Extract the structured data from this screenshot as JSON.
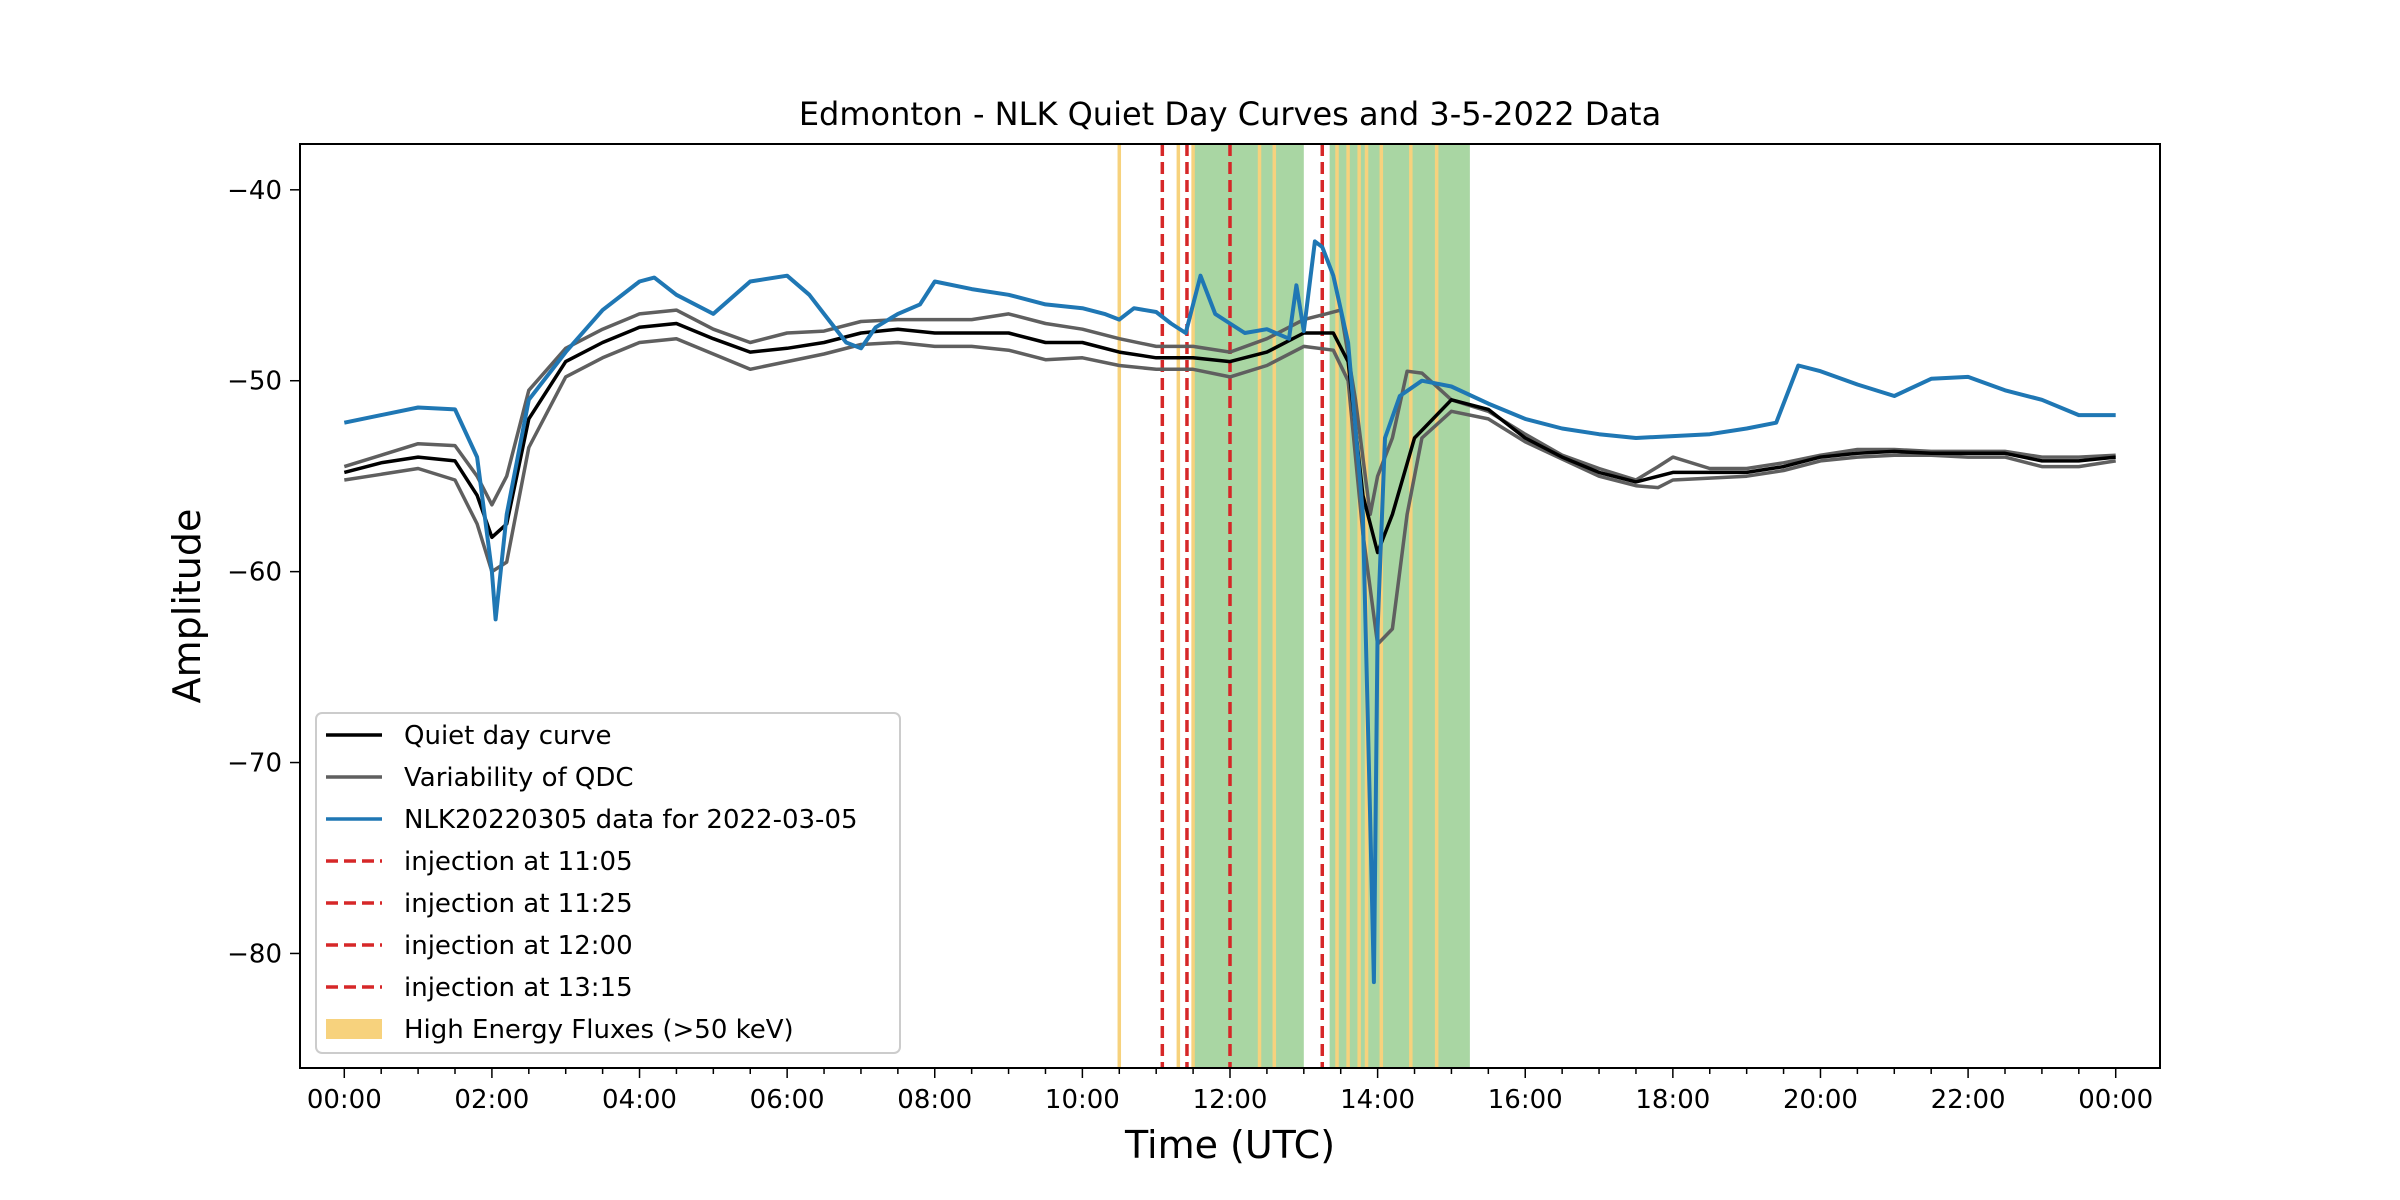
{
  "chart_data": {
    "type": "line",
    "title": "Edmonton - NLK Quiet Day Curves and 3-5-2022 Data",
    "xlabel": "Time (UTC)",
    "ylabel": "Amplitude",
    "xlim_hours": [
      -0.6,
      24.6
    ],
    "ylim": [
      -86,
      -37.6
    ],
    "x_ticks": [
      {
        "hour": 0,
        "label": "00:00"
      },
      {
        "hour": 2,
        "label": "02:00"
      },
      {
        "hour": 4,
        "label": "04:00"
      },
      {
        "hour": 6,
        "label": "06:00"
      },
      {
        "hour": 8,
        "label": "08:00"
      },
      {
        "hour": 10,
        "label": "10:00"
      },
      {
        "hour": 12,
        "label": "12:00"
      },
      {
        "hour": 14,
        "label": "14:00"
      },
      {
        "hour": 16,
        "label": "16:00"
      },
      {
        "hour": 18,
        "label": "18:00"
      },
      {
        "hour": 20,
        "label": "20:00"
      },
      {
        "hour": 22,
        "label": "22:00"
      },
      {
        "hour": 24,
        "label": "00:00"
      }
    ],
    "y_ticks": [
      {
        "value": -40,
        "label": "−40"
      },
      {
        "value": -50,
        "label": "−50"
      },
      {
        "value": -60,
        "label": "−60"
      },
      {
        "value": -70,
        "label": "−70"
      },
      {
        "value": -80,
        "label": "−80"
      }
    ],
    "series": [
      {
        "name": "NLK20220305 data for 2022-03-05",
        "color": "#1f77b4",
        "x": [
          0,
          0.5,
          1,
          1.5,
          1.8,
          2,
          2.05,
          2.2,
          2.5,
          3,
          3.5,
          4,
          4.2,
          4.5,
          5,
          5.5,
          6,
          6.3,
          6.5,
          6.8,
          7,
          7.2,
          7.5,
          7.8,
          8,
          8.5,
          9,
          9.5,
          10,
          10.3,
          10.5,
          10.7,
          11,
          11.2,
          11.4,
          11.6,
          11.8,
          12,
          12.2,
          12.5,
          12.8,
          12.9,
          13,
          13.15,
          13.25,
          13.4,
          13.6,
          13.8,
          13.9,
          13.95,
          14,
          14.1,
          14.3,
          14.6,
          15,
          15.5,
          16,
          16.5,
          17,
          17.5,
          18,
          18.5,
          19,
          19.4,
          19.7,
          20,
          20.5,
          21,
          21.5,
          22,
          22.5,
          23,
          23.5,
          24
        ],
        "y": [
          -52.2,
          -51.8,
          -51.4,
          -51.5,
          -54,
          -60,
          -62.5,
          -57,
          -51,
          -48.5,
          -46.3,
          -44.8,
          -44.6,
          -45.5,
          -46.5,
          -44.8,
          -44.5,
          -45.5,
          -46.5,
          -48,
          -48.3,
          -47.2,
          -46.5,
          -46,
          -44.8,
          -45.2,
          -45.5,
          -46,
          -46.2,
          -46.5,
          -46.8,
          -46.2,
          -46.4,
          -47,
          -47.5,
          -44.5,
          -46.5,
          -47,
          -47.5,
          -47.3,
          -47.8,
          -45,
          -47.4,
          -42.7,
          -43,
          -44.5,
          -48,
          -57,
          -73,
          -81.5,
          -63,
          -53,
          -50.8,
          -50,
          -50.3,
          -51.2,
          -52,
          -52.5,
          -52.8,
          -53,
          -52.9,
          -52.8,
          -52.5,
          -52.2,
          -49.2,
          -49.5,
          -50.2,
          -50.8,
          -49.9,
          -49.8,
          -50.5,
          -51,
          -51.8,
          -51.8
        ]
      },
      {
        "name": "Quiet day curve",
        "color": "#000000",
        "x": [
          0,
          0.5,
          1,
          1.5,
          1.8,
          2,
          2.2,
          2.5,
          3,
          3.5,
          4,
          4.5,
          5,
          5.5,
          6,
          6.5,
          7,
          7.5,
          8,
          8.5,
          9,
          9.5,
          10,
          10.5,
          11,
          11.5,
          12,
          12.5,
          13,
          13.4,
          13.6,
          13.8,
          14,
          14.2,
          14.5,
          15,
          15.5,
          16,
          16.5,
          17,
          17.5,
          18,
          18.5,
          19,
          19.5,
          20,
          20.5,
          21,
          21.5,
          22,
          22.5,
          23,
          23.5,
          24
        ],
        "y": [
          -54.8,
          -54.3,
          -54,
          -54.2,
          -56,
          -58.2,
          -57.5,
          -52,
          -49,
          -48,
          -47.2,
          -47,
          -47.8,
          -48.5,
          -48.3,
          -48,
          -47.5,
          -47.3,
          -47.5,
          -47.5,
          -47.5,
          -48,
          -48,
          -48.5,
          -48.8,
          -48.8,
          -49,
          -48.5,
          -47.5,
          -47.5,
          -49,
          -56,
          -59,
          -57,
          -53,
          -51,
          -51.5,
          -53,
          -54,
          -54.8,
          -55.3,
          -54.8,
          -54.8,
          -54.8,
          -54.5,
          -54,
          -53.8,
          -53.7,
          -53.8,
          -53.8,
          -53.8,
          -54.2,
          -54.2,
          -54
        ]
      },
      {
        "name": "Variability of QDC",
        "color": "#5f5f5f",
        "x": [
          0,
          0.5,
          1,
          1.5,
          1.8,
          2,
          2.2,
          2.5,
          3,
          3.5,
          4,
          4.5,
          5,
          5.5,
          6,
          6.5,
          7,
          7.5,
          8,
          8.5,
          9,
          9.5,
          10,
          10.5,
          11,
          11.5,
          12,
          12.5,
          13,
          13.3,
          13.5,
          13.7,
          13.9,
          14,
          14.2,
          14.4,
          14.6,
          15,
          15.5,
          16,
          16.5,
          17,
          17.5,
          17.8,
          18,
          18.5,
          19,
          19.5,
          20,
          20.5,
          21,
          21.5,
          22,
          22.5,
          23,
          23.5,
          24
        ],
        "y": [
          -54.5,
          -53.9,
          -53.3,
          -53.4,
          -55,
          -56.5,
          -55,
          -50.5,
          -48.3,
          -47.3,
          -46.5,
          -46.3,
          -47.3,
          -48,
          -47.5,
          -47.4,
          -46.9,
          -46.8,
          -46.8,
          -46.8,
          -46.5,
          -47,
          -47.3,
          -47.8,
          -48.2,
          -48.2,
          -48.5,
          -47.8,
          -46.8,
          -46.5,
          -46.3,
          -51,
          -57,
          -55,
          -53,
          -49.5,
          -49.6,
          -51,
          -51.6,
          -52.8,
          -53.9,
          -54.6,
          -55.2,
          -54.5,
          -54,
          -54.6,
          -54.6,
          -54.3,
          -53.9,
          -53.6,
          -53.6,
          -53.7,
          -53.7,
          -53.7,
          -54,
          -54,
          -53.9
        ]
      },
      {
        "name": "Variability of QDC",
        "color": "#5f5f5f",
        "x": [
          0,
          0.5,
          1,
          1.5,
          1.8,
          2,
          2.2,
          2.5,
          3,
          3.5,
          4,
          4.5,
          5,
          5.5,
          6,
          6.5,
          7,
          7.5,
          8,
          8.5,
          9,
          9.5,
          10,
          10.5,
          11,
          11.5,
          12,
          12.5,
          13,
          13.4,
          13.6,
          13.8,
          14,
          14.2,
          14.4,
          14.6,
          15,
          15.5,
          16,
          16.5,
          17,
          17.5,
          17.8,
          18,
          18.5,
          19,
          19.5,
          20,
          20.5,
          21,
          21.5,
          22,
          22.5,
          23,
          23.5,
          24
        ],
        "y": [
          -55.2,
          -54.9,
          -54.6,
          -55.2,
          -57.5,
          -60,
          -59.5,
          -53.5,
          -49.8,
          -48.8,
          -48,
          -47.8,
          -48.6,
          -49.4,
          -49,
          -48.6,
          -48.1,
          -48,
          -48.2,
          -48.2,
          -48.4,
          -48.9,
          -48.8,
          -49.2,
          -49.4,
          -49.4,
          -49.8,
          -49.2,
          -48.2,
          -48.4,
          -50,
          -58,
          -63.8,
          -63,
          -57,
          -53,
          -51.6,
          -52,
          -53.2,
          -54.1,
          -55,
          -55.5,
          -55.6,
          -55.2,
          -55.1,
          -55,
          -54.7,
          -54.2,
          -54,
          -53.9,
          -53.9,
          -54,
          -54,
          -54.5,
          -54.5,
          -54.2
        ]
      }
    ],
    "injections": [
      {
        "hour": 11.083,
        "label": "injection at 11:05"
      },
      {
        "hour": 11.417,
        "label": "injection at 11:25"
      },
      {
        "hour": 12.0,
        "label": "injection at 12:00"
      },
      {
        "hour": 13.25,
        "label": "injection at 13:15"
      }
    ],
    "green_bands": [
      {
        "start": 11.5,
        "end": 13.0
      },
      {
        "start": 13.35,
        "end": 15.25
      }
    ],
    "high_energy_lines_hours": [
      10.5,
      11.3,
      11.5,
      12.4,
      12.6,
      13.45,
      13.6,
      13.75,
      13.85,
      14.05,
      14.45,
      14.8
    ],
    "high_energy_label": "High Energy Fluxes (>50 keV)",
    "legend_position": "lower-left",
    "colors": {
      "injection": "#d62728",
      "high_energy": "#f7d27d",
      "green_band": "#a9d6a3"
    }
  }
}
